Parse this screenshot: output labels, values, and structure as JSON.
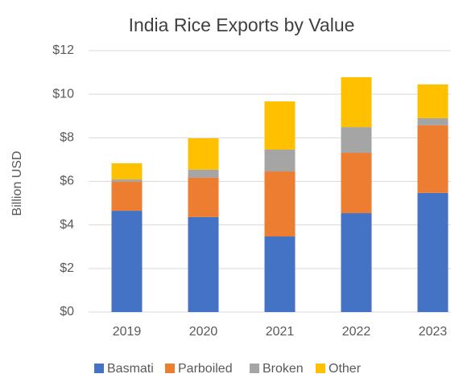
{
  "chart_data": {
    "type": "stacked_bar",
    "title": "India Rice Exports by Value",
    "y_label": "Billion USD",
    "categories": [
      "2019",
      "2020",
      "2021",
      "2022",
      "2023"
    ],
    "series": [
      {
        "name": "Basmati",
        "color": "#4472c4",
        "values": [
          4.65,
          4.36,
          3.47,
          4.54,
          5.47
        ]
      },
      {
        "name": "Parboiled",
        "color": "#ed7d31",
        "values": [
          1.33,
          1.81,
          2.99,
          2.77,
          3.1
        ]
      },
      {
        "name": "Broken",
        "color": "#a5a5a5",
        "values": [
          0.11,
          0.37,
          1.0,
          1.18,
          0.33
        ]
      },
      {
        "name": "Other",
        "color": "#ffc000",
        "values": [
          0.74,
          1.44,
          2.21,
          2.29,
          1.55
        ]
      }
    ],
    "ylim": [
      0,
      12
    ],
    "yticks": [
      {
        "value": 0,
        "label": "$0"
      },
      {
        "value": 2,
        "label": "$2"
      },
      {
        "value": 4,
        "label": "$4"
      },
      {
        "value": 6,
        "label": "$6"
      },
      {
        "value": 8,
        "label": "$8"
      },
      {
        "value": 10,
        "label": "$10"
      },
      {
        "value": 12,
        "label": "$12"
      }
    ],
    "grid": true,
    "legend": "bottom"
  }
}
